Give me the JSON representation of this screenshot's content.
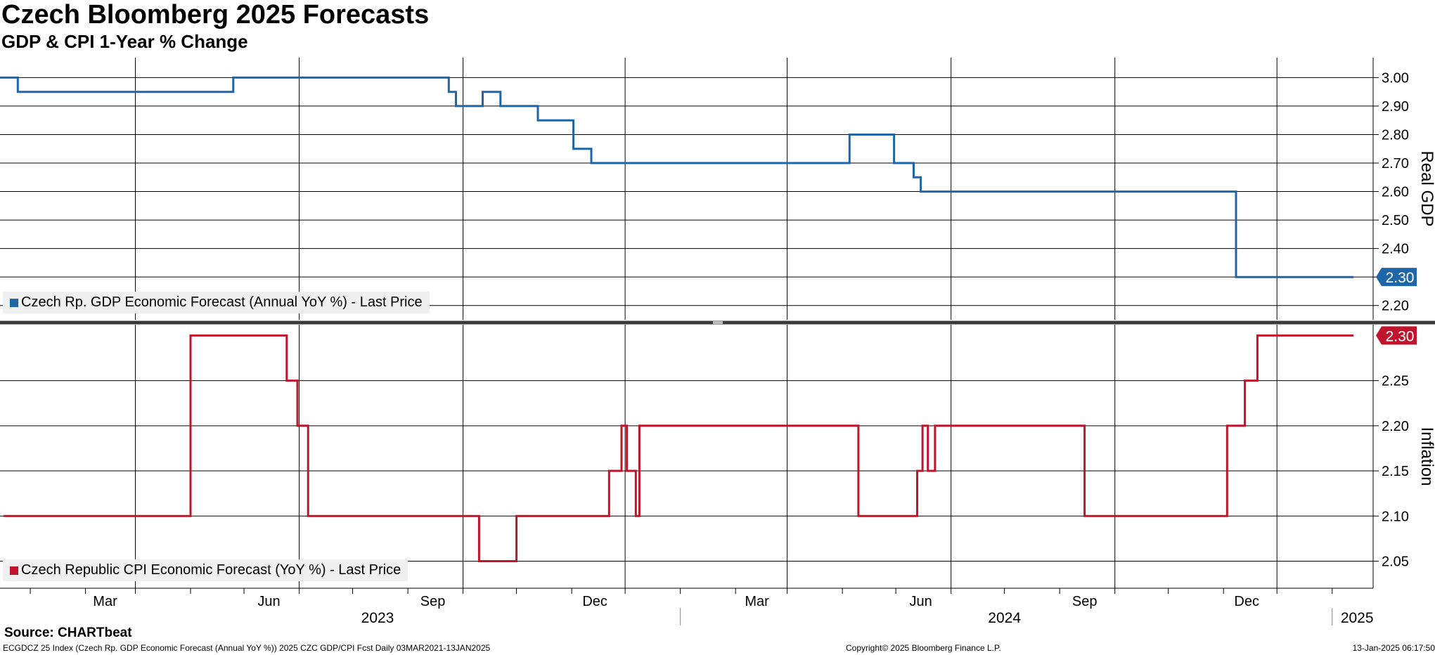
{
  "header": {
    "title": "Czech Bloomberg 2025 Forecasts",
    "subtitle": "GDP & CPI 1-Year % Change"
  },
  "footer": {
    "source": "Source: CHARTbeat",
    "info": "ECGDCZ 25 Index (Czech Rp. GDP Economic Forecast (Annual YoY %)) 2025 CZC GDP/CPI Fcst  Daily 03MAR2021-13JAN2025",
    "copyright": "Copyright© 2025 Bloomberg Finance L.P.",
    "timestamp": "13-Jan-2025 06:17:50"
  },
  "colors": {
    "gdp": "#1f66a8",
    "cpi": "#c0142c",
    "grid": "#000000",
    "divider": "#3a3a3a"
  },
  "chart_data": [
    {
      "type": "line",
      "x_axis": {
        "type": "date",
        "range": [
          "2022-12-15",
          "2025-01-24"
        ],
        "month_ticks": [
          {
            "date": "2023-03-01",
            "label": "Mar"
          },
          {
            "date": "2023-06-01",
            "label": "Jun"
          },
          {
            "date": "2023-09-01",
            "label": "Sep"
          },
          {
            "date": "2023-12-01",
            "label": "Dec"
          },
          {
            "date": "2024-03-01",
            "label": "Mar"
          },
          {
            "date": "2024-06-01",
            "label": "Jun"
          },
          {
            "date": "2024-09-01",
            "label": "Sep"
          },
          {
            "date": "2024-12-01",
            "label": "Dec"
          }
        ],
        "year_labels": [
          {
            "date": "2023-07-15",
            "label": "2023"
          },
          {
            "date": "2024-07-01",
            "label": "2024"
          },
          {
            "date": "2025-01-15",
            "label": "2025"
          }
        ]
      },
      "ylabel": "Real GDP",
      "ylim": [
        2.15,
        3.07
      ],
      "yticks": [
        "2.20",
        "2.30",
        "2.40",
        "2.50",
        "2.60",
        "2.70",
        "2.80",
        "2.90",
        "3.00"
      ],
      "grid": true,
      "legend": "bottom-left",
      "last_value_label": "2.30",
      "series": [
        {
          "name": "Czech Rp. GDP Economic Forecast (Annual YoY %) - Last Price",
          "step": true,
          "points": [
            [
              "2022-12-15",
              3.0
            ],
            [
              "2022-12-25",
              2.95
            ],
            [
              "2023-04-25",
              3.0
            ],
            [
              "2023-08-24",
              2.95
            ],
            [
              "2023-08-28",
              2.9
            ],
            [
              "2023-09-12",
              2.95
            ],
            [
              "2023-09-22",
              2.9
            ],
            [
              "2023-10-13",
              2.85
            ],
            [
              "2023-11-02",
              2.75
            ],
            [
              "2023-11-12",
              2.7
            ],
            [
              "2024-04-05",
              2.8
            ],
            [
              "2024-04-30",
              2.7
            ],
            [
              "2024-05-11",
              2.65
            ],
            [
              "2024-05-15",
              2.6
            ],
            [
              "2024-11-08",
              2.3
            ],
            [
              "2025-01-13",
              2.3
            ]
          ]
        }
      ]
    },
    {
      "type": "line",
      "x_axis": {
        "type": "date",
        "range": [
          "2022-12-15",
          "2025-01-24"
        ]
      },
      "ylabel": "Inflation",
      "ylim": [
        2.02,
        2.312
      ],
      "yticks": [
        "2.05",
        "2.10",
        "2.15",
        "2.20",
        "2.25"
      ],
      "grid": true,
      "legend": "bottom-left",
      "last_value_label": "2.30",
      "series": [
        {
          "name": "Czech Republic CPI Economic Forecast (YoY %) - Last Price",
          "step": true,
          "points": [
            [
              "2022-12-17",
              2.1
            ],
            [
              "2023-04-01",
              2.3
            ],
            [
              "2023-05-25",
              2.25
            ],
            [
              "2023-05-31",
              2.2
            ],
            [
              "2023-06-06",
              2.1
            ],
            [
              "2023-09-10",
              2.05
            ],
            [
              "2023-10-01",
              2.1
            ],
            [
              "2023-11-22",
              2.15
            ],
            [
              "2023-11-29",
              2.2
            ],
            [
              "2023-12-02",
              2.15
            ],
            [
              "2023-12-07",
              2.1
            ],
            [
              "2023-12-09",
              2.2
            ],
            [
              "2024-04-10",
              2.1
            ],
            [
              "2024-05-13",
              2.15
            ],
            [
              "2024-05-16",
              2.2
            ],
            [
              "2024-05-19",
              2.15
            ],
            [
              "2024-05-23",
              2.2
            ],
            [
              "2024-08-15",
              2.1
            ],
            [
              "2024-11-03",
              2.2
            ],
            [
              "2024-11-13",
              2.25
            ],
            [
              "2024-11-20",
              2.3
            ],
            [
              "2025-01-13",
              2.3
            ]
          ]
        }
      ]
    }
  ]
}
